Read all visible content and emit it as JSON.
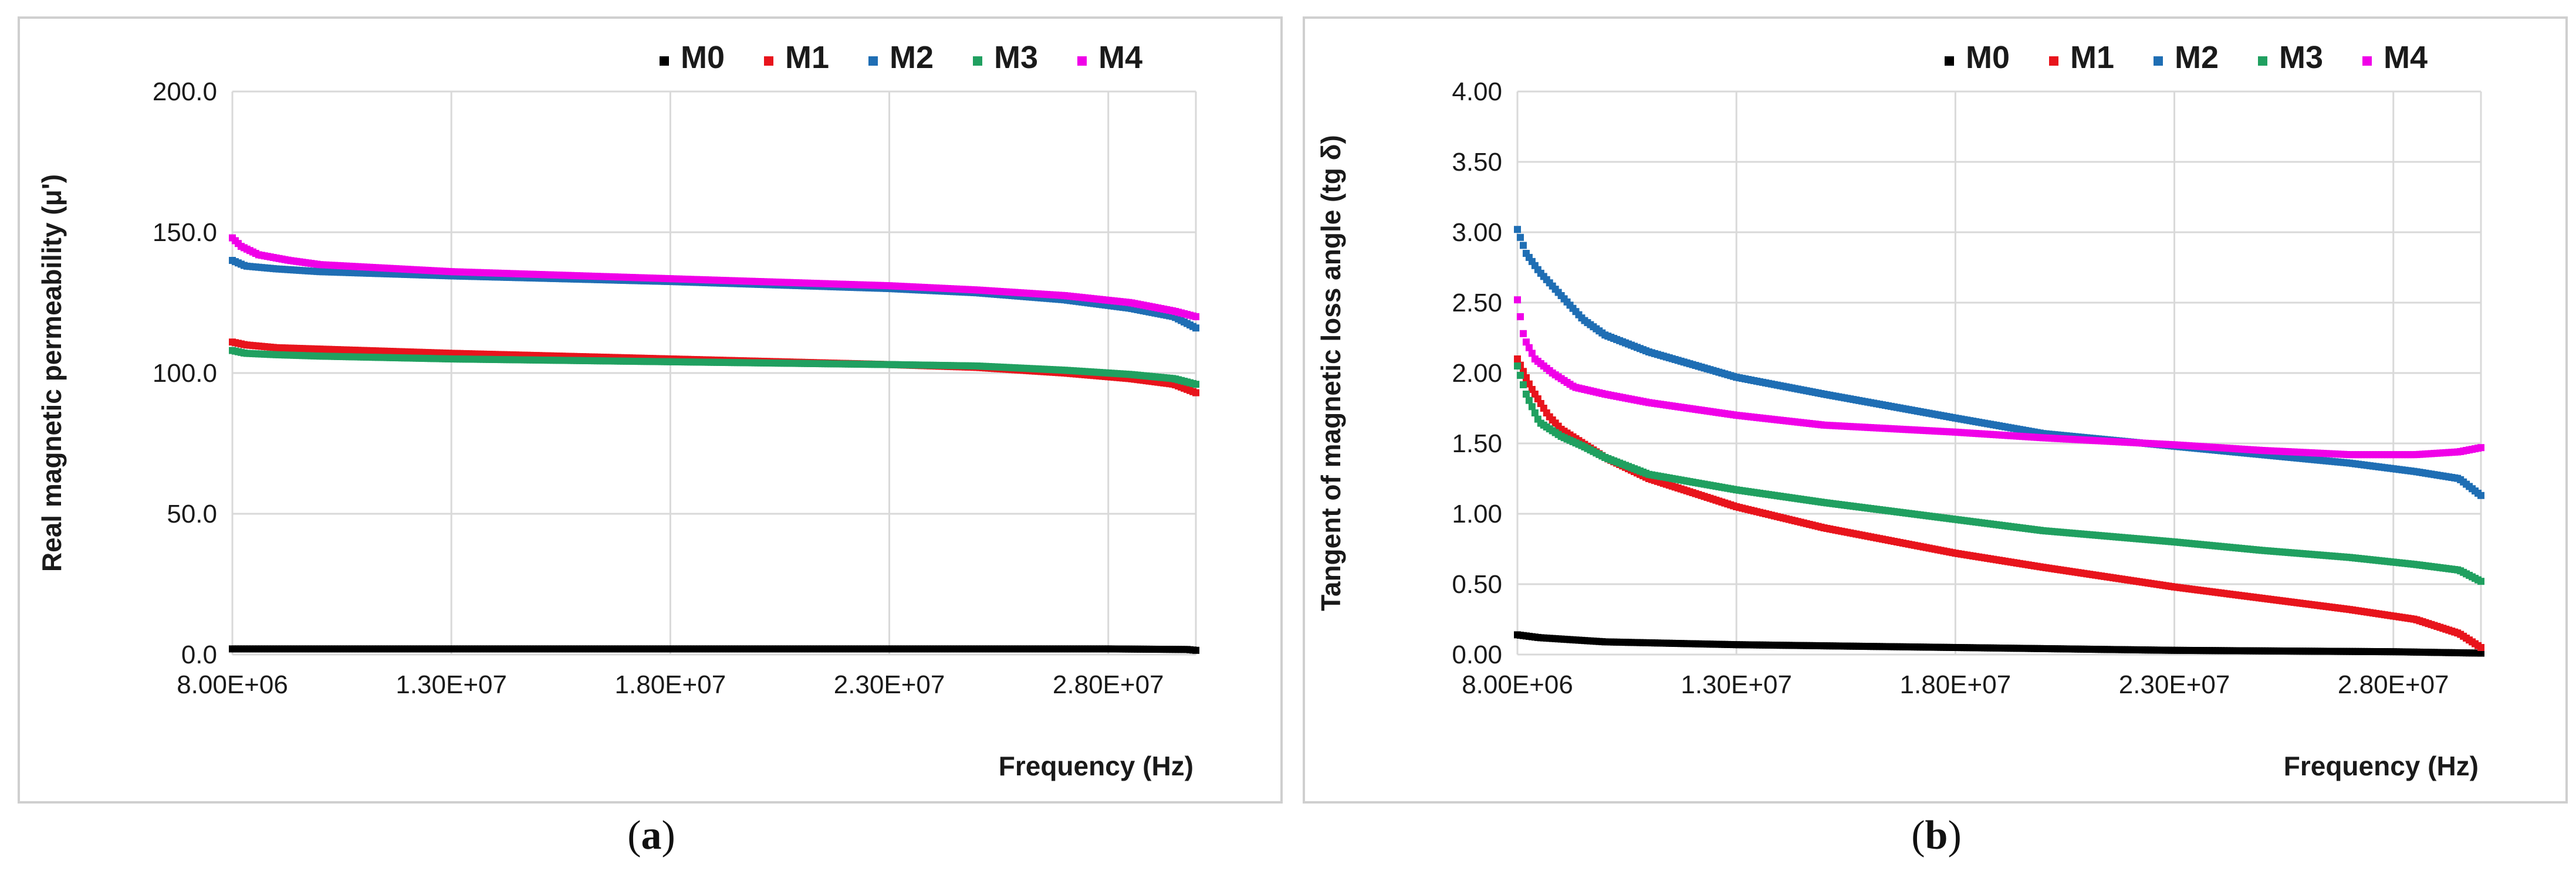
{
  "colors": {
    "M0": "#000000",
    "M1": "#e8141c",
    "M2": "#1f6eb4",
    "M3": "#20a060",
    "M4": "#f000e8"
  },
  "chart_data": [
    {
      "type": "scatter",
      "panel": "a",
      "caption_label": "a",
      "xlabel": "Frequency (Hz)",
      "ylabel": "Real magnetic permeability  (μ')",
      "xlim": [
        8000000,
        30000000
      ],
      "ylim": [
        0,
        200
      ],
      "xticks": [
        8000000,
        13000000,
        18000000,
        23000000,
        28000000
      ],
      "xtick_labels": [
        "8.00E+06",
        "1.30E+07",
        "1.80E+07",
        "2.30E+07",
        "2.80E+07"
      ],
      "yticks": [
        0,
        50,
        100,
        150,
        200
      ],
      "ytick_labels": [
        "0.0",
        "50.0",
        "100.0",
        "150.0",
        "200.0"
      ],
      "legend": [
        "M0",
        "M1",
        "M2",
        "M3",
        "M4"
      ],
      "legend_position": "top-right",
      "series": [
        {
          "name": "M0",
          "x": [
            8000000,
            10000000,
            13000000,
            18000000,
            23000000,
            28000000,
            29800000,
            30000000
          ],
          "y": [
            2,
            2,
            2,
            2,
            2,
            2,
            1.8,
            1.5
          ]
        },
        {
          "name": "M1",
          "x": [
            8000000,
            8300000,
            9000000,
            10000000,
            13000000,
            18000000,
            23000000,
            25000000,
            27000000,
            28500000,
            29500000,
            30000000
          ],
          "y": [
            111,
            110,
            109,
            108.5,
            107,
            105,
            103,
            102,
            100,
            98,
            96,
            93
          ]
        },
        {
          "name": "M2",
          "x": [
            8000000,
            8300000,
            9000000,
            10000000,
            13000000,
            18000000,
            23000000,
            25000000,
            27000000,
            28500000,
            29500000,
            30000000
          ],
          "y": [
            140,
            138,
            137,
            136,
            134.5,
            132.5,
            130,
            128.5,
            126,
            123,
            120,
            116
          ]
        },
        {
          "name": "M3",
          "x": [
            8000000,
            8300000,
            9000000,
            10000000,
            13000000,
            18000000,
            23000000,
            25000000,
            27000000,
            28500000,
            29500000,
            30000000
          ],
          "y": [
            108,
            107,
            106.5,
            106,
            105,
            104,
            103,
            102.5,
            101,
            99.5,
            98,
            96
          ]
        },
        {
          "name": "M4",
          "x": [
            8000000,
            8200000,
            8600000,
            9300000,
            10000000,
            13000000,
            18000000,
            23000000,
            25000000,
            27000000,
            28500000,
            29500000,
            30000000
          ],
          "y": [
            148,
            145,
            142,
            140,
            138.5,
            136,
            133.5,
            131,
            129.5,
            127.5,
            125,
            122,
            120
          ]
        }
      ]
    },
    {
      "type": "scatter",
      "panel": "b",
      "caption_label": "b",
      "xlabel": "Frequency (Hz)",
      "ylabel": "Tangent of magnetic loss angle (tg δ)",
      "xlim": [
        8000000,
        30000000
      ],
      "ylim": [
        0,
        4
      ],
      "xticks": [
        8000000,
        13000000,
        18000000,
        23000000,
        28000000
      ],
      "xtick_labels": [
        "8.00E+06",
        "1.30E+07",
        "1.80E+07",
        "2.30E+07",
        "2.80E+07"
      ],
      "yticks": [
        0,
        0.5,
        1,
        1.5,
        2,
        2.5,
        3,
        3.5,
        4
      ],
      "ytick_labels": [
        "0.00",
        "0.50",
        "1.00",
        "1.50",
        "2.00",
        "2.50",
        "3.00",
        "3.50",
        "4.00"
      ],
      "legend": [
        "M0",
        "M1",
        "M2",
        "M3",
        "M4"
      ],
      "legend_position": "top-right",
      "series": [
        {
          "name": "M0",
          "x": [
            8000000,
            8500000,
            9000000,
            10000000,
            13000000,
            18000000,
            23000000,
            28000000,
            30000000
          ],
          "y": [
            0.14,
            0.12,
            0.11,
            0.09,
            0.07,
            0.05,
            0.03,
            0.02,
            0.01
          ]
        },
        {
          "name": "M1",
          "x": [
            8000000,
            8300000,
            8700000,
            9000000,
            9500000,
            10000000,
            11000000,
            13000000,
            15000000,
            18000000,
            20000000,
            23000000,
            25000000,
            27000000,
            28500000,
            29500000,
            30000000
          ],
          "y": [
            2.1,
            1.9,
            1.7,
            1.6,
            1.5,
            1.4,
            1.25,
            1.05,
            0.9,
            0.72,
            0.62,
            0.48,
            0.4,
            0.32,
            0.25,
            0.15,
            0.05
          ]
        },
        {
          "name": "M2",
          "x": [
            8000000,
            8200000,
            8500000,
            9000000,
            9500000,
            10000000,
            11000000,
            13000000,
            15000000,
            18000000,
            20000000,
            23000000,
            25000000,
            27000000,
            28500000,
            29500000,
            30000000
          ],
          "y": [
            3.02,
            2.85,
            2.72,
            2.55,
            2.38,
            2.27,
            2.15,
            1.97,
            1.85,
            1.68,
            1.57,
            1.48,
            1.42,
            1.36,
            1.3,
            1.25,
            1.13
          ]
        },
        {
          "name": "M3",
          "x": [
            8000000,
            8200000,
            8500000,
            9000000,
            9500000,
            10000000,
            11000000,
            13000000,
            15000000,
            18000000,
            20000000,
            23000000,
            25000000,
            27000000,
            28500000,
            29500000,
            30000000
          ],
          "y": [
            2.05,
            1.85,
            1.65,
            1.55,
            1.48,
            1.4,
            1.28,
            1.17,
            1.08,
            0.96,
            0.88,
            0.8,
            0.74,
            0.69,
            0.64,
            0.6,
            0.52
          ]
        },
        {
          "name": "M4",
          "x": [
            8000000,
            8150000,
            8400000,
            8800000,
            9300000,
            10000000,
            11000000,
            13000000,
            15000000,
            18000000,
            20000000,
            23000000,
            25000000,
            27000000,
            28500000,
            29500000,
            30000000
          ],
          "y": [
            2.52,
            2.25,
            2.1,
            2.0,
            1.9,
            1.85,
            1.79,
            1.7,
            1.63,
            1.58,
            1.54,
            1.49,
            1.45,
            1.42,
            1.42,
            1.44,
            1.47
          ]
        }
      ]
    }
  ]
}
